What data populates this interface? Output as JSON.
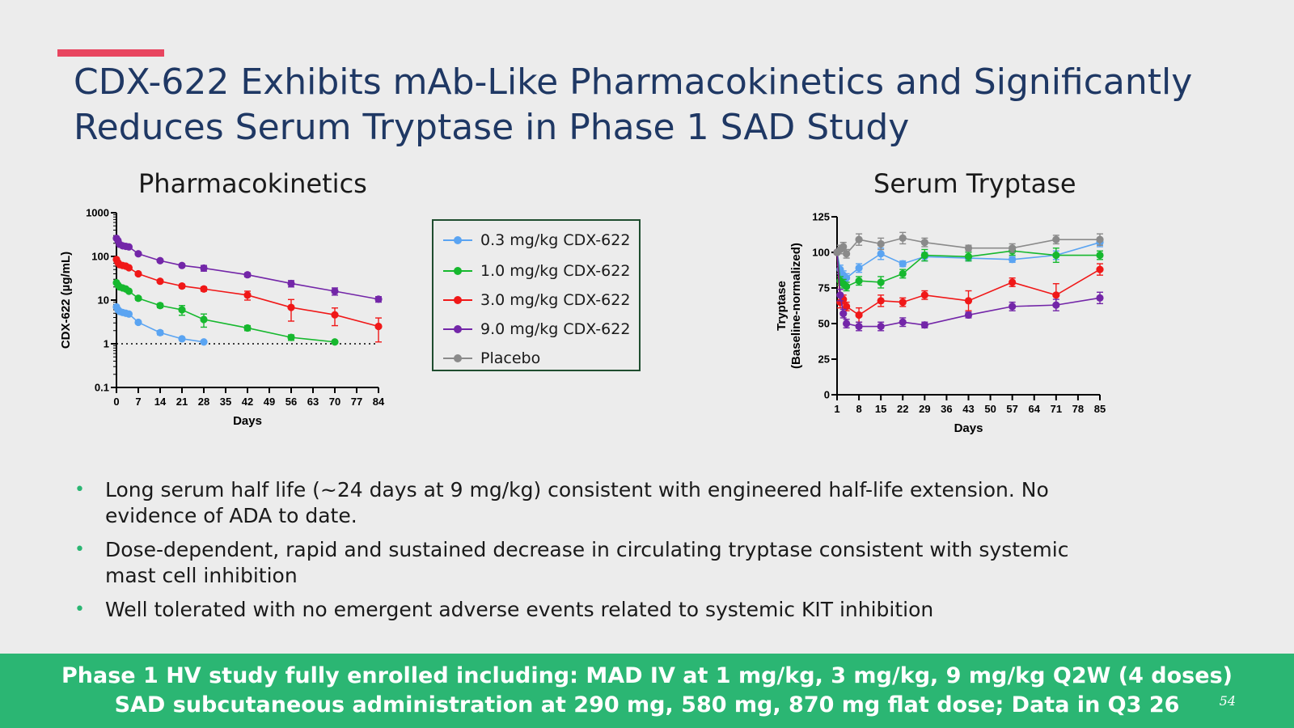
{
  "slide": {
    "title_line1": "CDX-622 Exhibits mAb-Like Pharmacokinetics and Significantly",
    "title_line2": "Reduces Serum Tryptase in Phase 1 SAD Study",
    "accent_color": "#e8455f",
    "title_color": "#1f3864",
    "page_number": "54"
  },
  "bullets": [
    "Long serum half life (~24 days at 9 mg/kg) consistent with engineered half-life extension. No evidence of ADA to date.",
    "Dose-dependent, rapid and sustained decrease in circulating tryptase consistent with systemic mast cell inhibition",
    "Well tolerated with no emergent adverse events related to systemic KIT inhibition"
  ],
  "bullet_glyph": "•",
  "footer": {
    "line1": "Phase 1 HV study fully enrolled including: MAD IV at 1 mg/kg, 3 mg/kg, 9 mg/kg Q2W (4 doses)",
    "line2": "SAD subcutaneous administration at 290 mg, 580 mg, 870 mg flat dose; Data in Q3 26",
    "color": "#2bb673"
  },
  "legend": [
    {
      "label": "0.3 mg/kg CDX-622",
      "color": "#5aa4f2"
    },
    {
      "label": "1.0 mg/kg CDX-622",
      "color": "#16b82e"
    },
    {
      "label": "3.0 mg/kg CDX-622",
      "color": "#f01818"
    },
    {
      "label": "9.0 mg/kg CDX-622",
      "color": "#7326a8"
    },
    {
      "label": "Placebo",
      "color": "#8a8a8a"
    }
  ],
  "chart_data": [
    {
      "type": "line",
      "title": "Pharmacokinetics",
      "xlabel": "Days",
      "ylabel": "CDX-622 (µg/mL)",
      "yscale": "log",
      "ylim": [
        0.1,
        1000
      ],
      "xlim": [
        0,
        84
      ],
      "xticks": [
        "0",
        "7",
        "14",
        "21",
        "28",
        "35",
        "42",
        "49",
        "56",
        "63",
        "70",
        "77",
        "84"
      ],
      "yticks": [
        "0.1",
        "1",
        "10",
        "100",
        "1000"
      ],
      "reference_line": {
        "y": 1,
        "style": "dotted"
      },
      "series": [
        {
          "name": "0.3 mg/kg CDX-622",
          "color": "#5aa4f2",
          "x": [
            0,
            0.5,
            1,
            2,
            3,
            4,
            7,
            14,
            21,
            28
          ],
          "y": [
            7,
            6,
            5.5,
            5.2,
            5,
            4.8,
            3.1,
            1.8,
            1.3,
            1.1
          ],
          "err": [
            0,
            0,
            0,
            0,
            0,
            0,
            0.2,
            0.2,
            0.1,
            0.05
          ]
        },
        {
          "name": "1.0 mg/kg CDX-622",
          "color": "#16b82e",
          "x": [
            0,
            0.5,
            1,
            2,
            3,
            4,
            7,
            14,
            21,
            28,
            42,
            56,
            70
          ],
          "y": [
            25,
            22,
            20,
            19,
            18,
            16,
            11,
            7.5,
            6,
            3.6,
            2.3,
            1.4,
            1.1
          ],
          "err": [
            0,
            0,
            0,
            0,
            0,
            0,
            1,
            0.8,
            1.5,
            1.2,
            0.3,
            0.2,
            0.05
          ]
        },
        {
          "name": "3.0 mg/kg CDX-622",
          "color": "#f01818",
          "x": [
            0,
            0.5,
            1,
            2,
            3,
            4,
            7,
            14,
            21,
            28,
            42,
            56,
            70,
            84
          ],
          "y": [
            85,
            72,
            65,
            62,
            60,
            55,
            40,
            27,
            21,
            18,
            13,
            6.8,
            4.6,
            2.5
          ],
          "err": [
            0,
            0,
            0,
            0,
            0,
            0,
            3,
            2,
            2,
            2,
            3,
            3.5,
            2,
            1.4
          ]
        },
        {
          "name": "9.0 mg/kg CDX-622",
          "color": "#7326a8",
          "x": [
            0,
            0.5,
            1,
            2,
            3,
            4,
            7,
            14,
            21,
            28,
            42,
            56,
            70,
            84
          ],
          "y": [
            260,
            230,
            190,
            175,
            170,
            165,
            115,
            80,
            62,
            54,
            38,
            24,
            16,
            10.5
          ],
          "err": [
            0,
            0,
            0,
            0,
            0,
            0,
            8,
            6,
            5,
            8,
            4,
            4,
            3,
            1.5
          ]
        }
      ]
    },
    {
      "type": "line",
      "title": "Serum Tryptase",
      "xlabel": "Days",
      "ylabel": "Tryptase (Baseline-normalized)",
      "ylim": [
        0,
        125
      ],
      "xlim": [
        1,
        85
      ],
      "xticks": [
        "1",
        "8",
        "15",
        "22",
        "29",
        "36",
        "43",
        "50",
        "57",
        "64",
        "71",
        "78",
        "85"
      ],
      "yticks": [
        "0",
        "25",
        "50",
        "75",
        "100",
        "125"
      ],
      "series": [
        {
          "name": "0.3 mg/kg CDX-622",
          "color": "#5aa4f2",
          "x": [
            1,
            2,
            3,
            4,
            8,
            15,
            22,
            29,
            43,
            57,
            71,
            85
          ],
          "y": [
            100,
            88,
            84,
            82,
            89,
            99,
            92,
            97,
            96,
            95,
            98,
            107
          ],
          "err": [
            0,
            3,
            3,
            3,
            3,
            4,
            2,
            3,
            2,
            2,
            3,
            3
          ]
        },
        {
          "name": "1.0 mg/kg CDX-622",
          "color": "#16b82e",
          "x": [
            1,
            2,
            3,
            4,
            8,
            15,
            22,
            29,
            43,
            57,
            71,
            85
          ],
          "y": [
            100,
            80,
            78,
            76,
            80,
            79,
            85,
            98,
            97,
            101,
            98,
            98
          ],
          "err": [
            0,
            3,
            3,
            3,
            3,
            4,
            3,
            4,
            3,
            3,
            5,
            3
          ]
        },
        {
          "name": "3.0 mg/kg CDX-622",
          "color": "#f01818",
          "x": [
            1,
            2,
            3,
            4,
            8,
            15,
            22,
            29,
            43,
            57,
            71,
            85
          ],
          "y": [
            100,
            65,
            67,
            62,
            56,
            66,
            65,
            70,
            66,
            79,
            70,
            88
          ],
          "err": [
            0,
            4,
            3,
            3,
            5,
            4,
            3,
            3,
            7,
            3,
            8,
            4
          ]
        },
        {
          "name": "9.0 mg/kg CDX-622",
          "color": "#7326a8",
          "x": [
            1,
            2,
            3,
            4,
            8,
            15,
            22,
            29,
            43,
            57,
            71,
            85
          ],
          "y": [
            100,
            70,
            57,
            50,
            48,
            48,
            51,
            49,
            56,
            62,
            63,
            68
          ],
          "err": [
            0,
            4,
            3,
            3,
            3,
            3,
            3,
            2,
            2,
            3,
            4,
            4
          ]
        },
        {
          "name": "Placebo",
          "color": "#8a8a8a",
          "x": [
            1,
            2,
            3,
            4,
            8,
            15,
            22,
            29,
            43,
            57,
            71,
            85
          ],
          "y": [
            100,
            102,
            104,
            99,
            109,
            106,
            110,
            107,
            103,
            103,
            109,
            109
          ],
          "err": [
            0,
            3,
            3,
            3,
            4,
            4,
            4,
            3,
            2,
            3,
            3,
            4
          ]
        }
      ]
    }
  ]
}
